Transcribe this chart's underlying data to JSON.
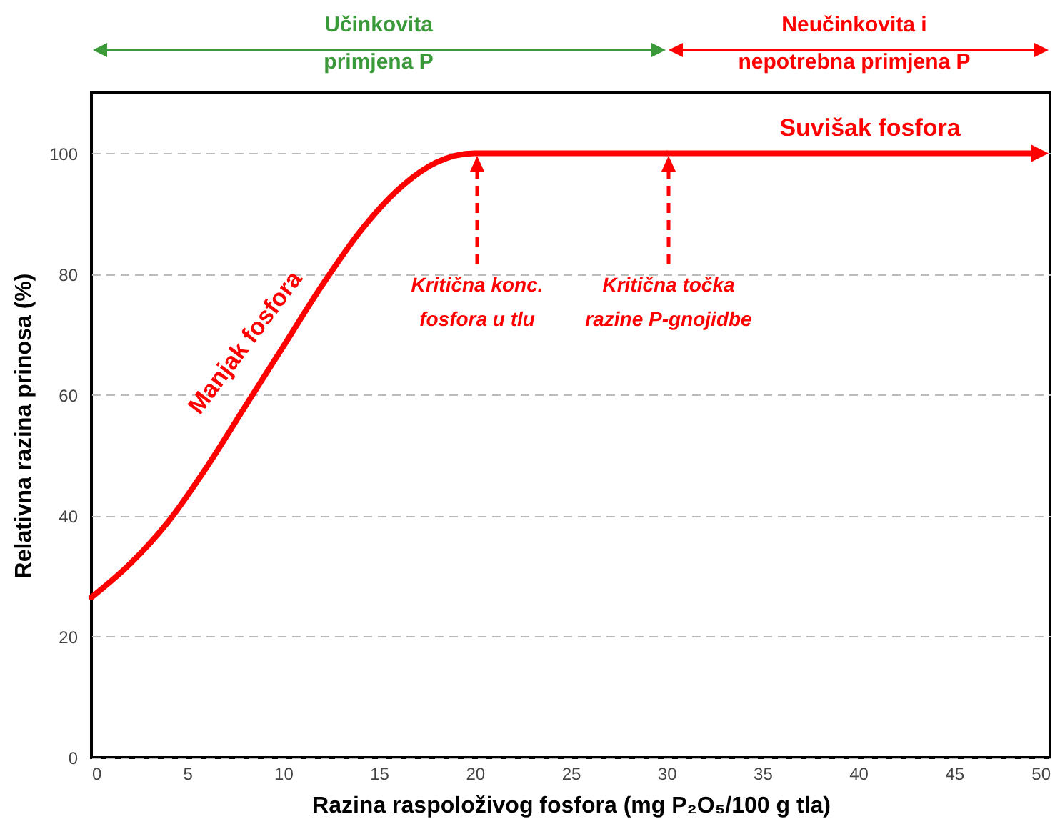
{
  "chart_data": {
    "type": "line",
    "xlabel": "Razina raspoloživog  fosfora (mg P₂O₅/100 g tla)",
    "ylabel": "Relativna razina prinosa (%)",
    "x": [
      0,
      2,
      4,
      6,
      8,
      10,
      12,
      14,
      16,
      18,
      20,
      30
    ],
    "series": [
      {
        "color": "#ff0000",
        "values": [
          26.5,
          32,
          39,
          48,
          58,
          68,
          78,
          87,
          94,
          98.5,
          100,
          100
        ]
      }
    ],
    "xlim": [
      0,
      50
    ],
    "xticks": [
      0,
      5,
      10,
      15,
      20,
      25,
      30,
      35,
      40,
      45,
      50
    ],
    "ylim": [
      0,
      110
    ],
    "yticks": [
      0,
      20,
      40,
      60,
      80,
      100
    ],
    "grid": "y",
    "annotations": [
      "Suvišak fosfora",
      "Manjak fosfora",
      "Učinkovita\nprimjena P",
      "Neučinkovita i\nnepotrebna  primjena P",
      "Kritična konc.\nfosfora u tlu",
      "Kritična točka\nrazine P-gnojidbe"
    ]
  }
}
